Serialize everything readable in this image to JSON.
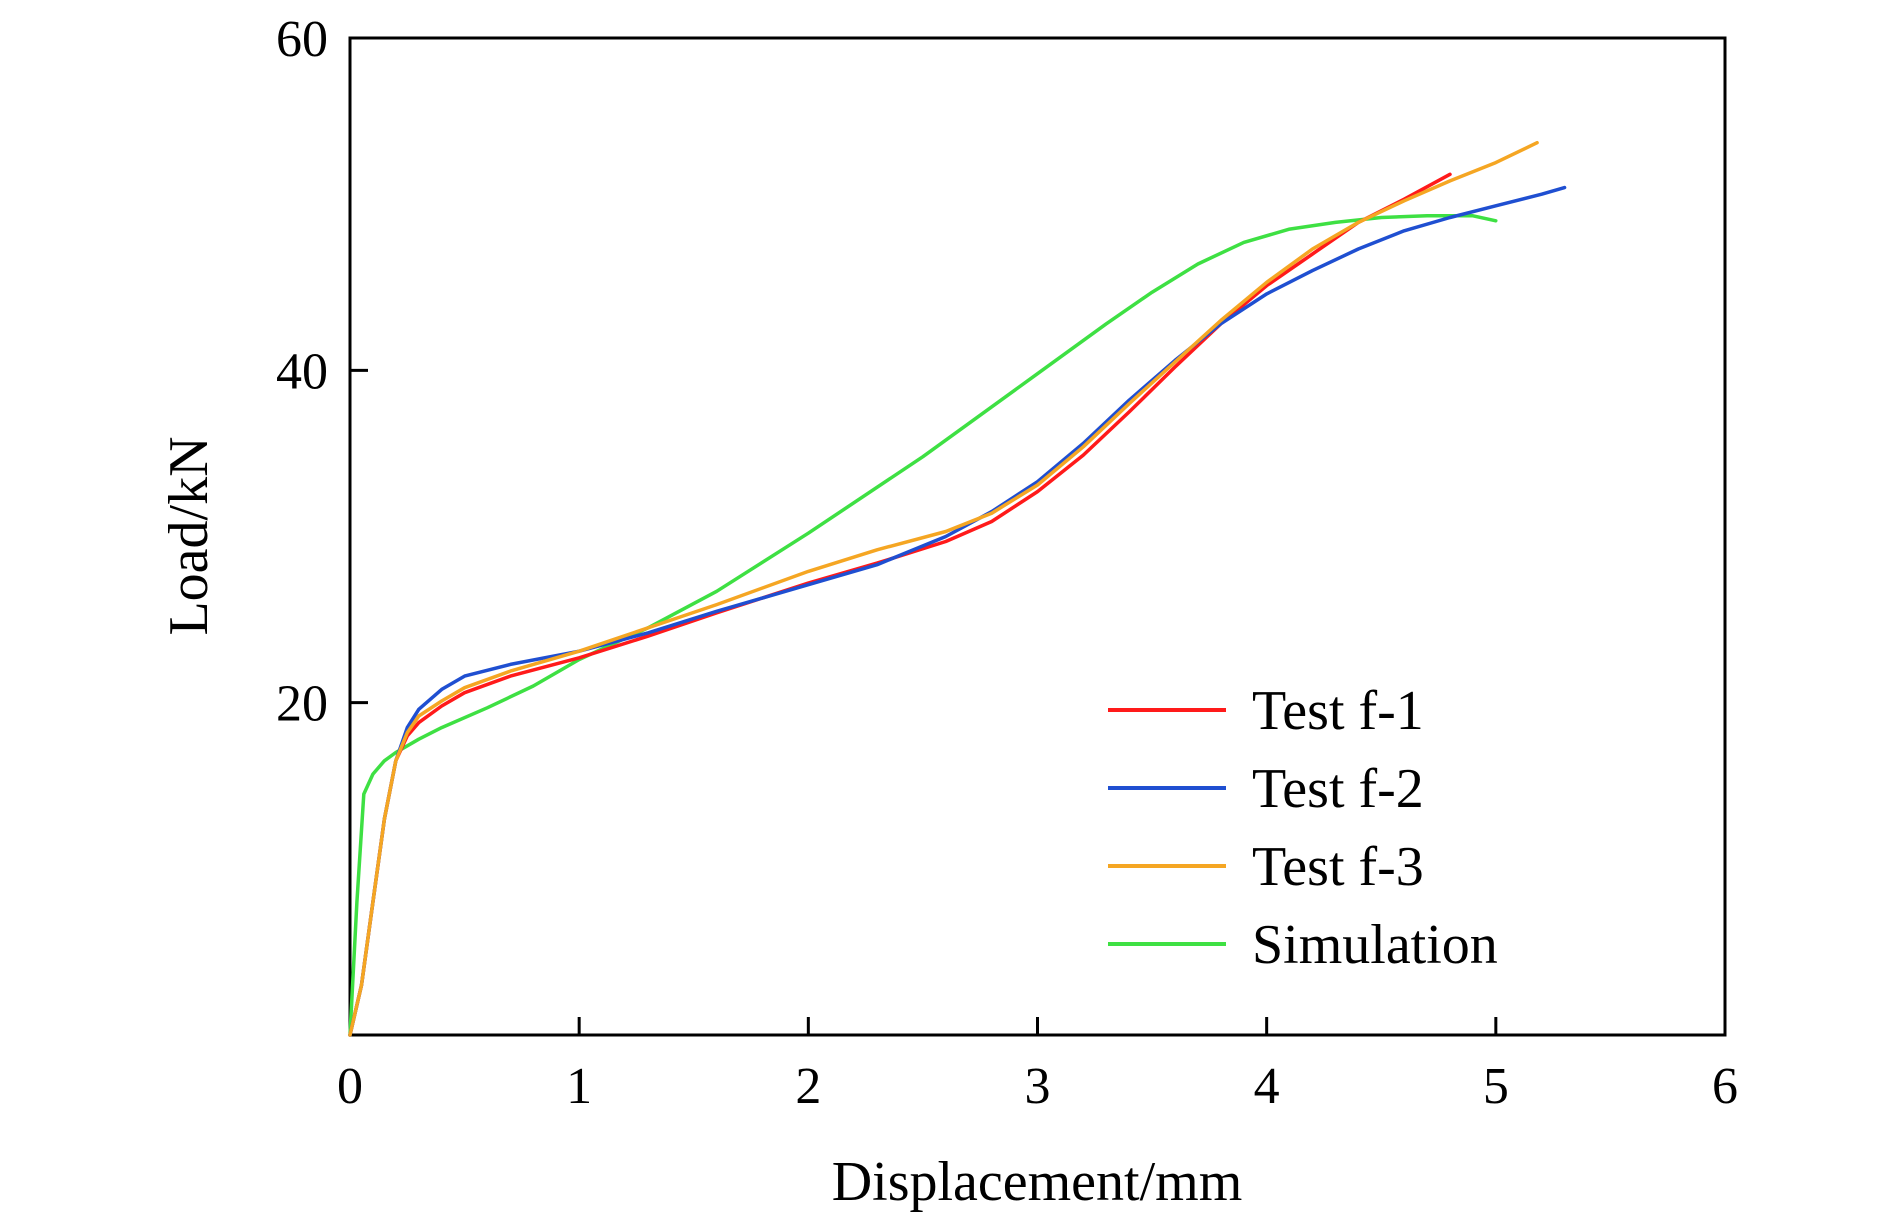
{
  "chart_data": {
    "type": "line",
    "title": "",
    "xlabel": "Displacement/mm",
    "ylabel": "Load/kN",
    "xlim": [
      0,
      6
    ],
    "ylim": [
      0,
      60
    ],
    "xticks": [
      "0",
      "1",
      "2",
      "3",
      "4",
      "5",
      "6"
    ],
    "yticks": [
      "20",
      "40",
      "60"
    ],
    "grid": false,
    "legend_position": "bottom-right",
    "series": [
      {
        "name": "Test f-1",
        "color": "#ff1a1a",
        "x": [
          0,
          0.05,
          0.1,
          0.15,
          0.2,
          0.25,
          0.3,
          0.4,
          0.5,
          0.7,
          1.0,
          1.3,
          1.6,
          2.0,
          2.3,
          2.6,
          2.8,
          3.0,
          3.2,
          3.4,
          3.6,
          3.8,
          4.0,
          4.2,
          4.4,
          4.6,
          4.8
        ],
        "y": [
          0,
          3,
          8,
          13,
          16.5,
          18,
          18.8,
          19.8,
          20.6,
          21.6,
          22.7,
          24.0,
          25.4,
          27.2,
          28.4,
          29.7,
          30.9,
          32.7,
          34.9,
          37.5,
          40.2,
          42.8,
          45.1,
          47.0,
          48.9,
          50.3,
          51.8
        ]
      },
      {
        "name": "Test f-2",
        "color": "#1f4fd1",
        "x": [
          0,
          0.05,
          0.1,
          0.15,
          0.2,
          0.25,
          0.3,
          0.4,
          0.5,
          0.7,
          1.0,
          1.3,
          1.6,
          2.0,
          2.3,
          2.6,
          2.8,
          3.0,
          3.2,
          3.4,
          3.6,
          3.8,
          4.0,
          4.2,
          4.4,
          4.6,
          4.8,
          5.0,
          5.2,
          5.3
        ],
        "y": [
          0,
          3,
          8,
          13,
          16.5,
          18.5,
          19.6,
          20.8,
          21.6,
          22.3,
          23.1,
          24.2,
          25.5,
          27.1,
          28.3,
          30.0,
          31.5,
          33.3,
          35.6,
          38.2,
          40.6,
          42.8,
          44.6,
          46.0,
          47.3,
          48.4,
          49.2,
          49.9,
          50.6,
          51.0
        ]
      },
      {
        "name": "Test f-3",
        "color": "#f5a623",
        "x": [
          0,
          0.05,
          0.1,
          0.15,
          0.2,
          0.25,
          0.3,
          0.4,
          0.5,
          0.7,
          1.0,
          1.3,
          1.6,
          2.0,
          2.3,
          2.6,
          2.8,
          3.0,
          3.2,
          3.4,
          3.6,
          3.8,
          4.0,
          4.2,
          4.4,
          4.6,
          4.8,
          5.0,
          5.18
        ],
        "y": [
          0,
          3,
          8,
          13,
          16.5,
          18.2,
          19.2,
          20.1,
          20.9,
          21.9,
          23.1,
          24.5,
          25.9,
          27.9,
          29.2,
          30.3,
          31.4,
          33.1,
          35.4,
          38.0,
          40.5,
          43.0,
          45.3,
          47.3,
          48.9,
          50.2,
          51.4,
          52.5,
          53.7
        ]
      },
      {
        "name": "Simulation",
        "color": "#3ee043",
        "x": [
          0,
          0.03,
          0.06,
          0.1,
          0.15,
          0.2,
          0.3,
          0.4,
          0.6,
          0.8,
          1.0,
          1.3,
          1.6,
          2.0,
          2.5,
          3.0,
          3.3,
          3.5,
          3.7,
          3.9,
          4.1,
          4.3,
          4.5,
          4.7,
          4.9,
          5.0
        ],
        "y": [
          0,
          8,
          14.5,
          15.7,
          16.5,
          17.0,
          17.8,
          18.5,
          19.7,
          21.0,
          22.6,
          24.5,
          26.7,
          30.2,
          34.8,
          39.8,
          42.8,
          44.7,
          46.4,
          47.7,
          48.5,
          48.9,
          49.2,
          49.3,
          49.3,
          49.0
        ]
      }
    ]
  }
}
